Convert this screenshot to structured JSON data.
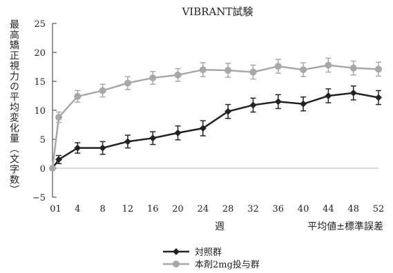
{
  "chart_data": {
    "type": "line",
    "title": "VIBRANT試験",
    "ylabel": "最高矯正視力の平均変化量（文字数）",
    "xlabel": "週",
    "note": "平均値±標準誤差",
    "x": [
      0,
      1,
      4,
      8,
      12,
      16,
      20,
      24,
      28,
      32,
      36,
      40,
      44,
      48,
      52
    ],
    "x_tick_labels": [
      "01",
      "4",
      "8",
      "12",
      "16",
      "20",
      "24",
      "28",
      "32",
      "36",
      "40",
      "44",
      "48",
      "52"
    ],
    "y_ticks": [
      -5,
      0,
      5,
      10,
      15,
      20,
      25
    ],
    "ylim": [
      -5,
      25
    ],
    "xlim": [
      0,
      52
    ],
    "legend_position": "bottom-left",
    "series": [
      {
        "name": "対照群",
        "color": "#222222",
        "marker": "diamond",
        "values": [
          0,
          1.5,
          3.5,
          3.5,
          4.6,
          5.2,
          6.1,
          6.9,
          9.8,
          10.9,
          11.5,
          11.1,
          12.5,
          13.0,
          12.2
        ],
        "error": [
          0,
          0.7,
          0.9,
          1.1,
          1.1,
          1.1,
          1.2,
          1.3,
          1.2,
          1.2,
          1.2,
          1.2,
          1.2,
          1.2,
          1.2
        ]
      },
      {
        "name": "本剤2mg投与群",
        "color": "#a8a8a8",
        "marker": "circle",
        "values": [
          0,
          8.8,
          12.4,
          13.4,
          14.7,
          15.6,
          16.1,
          17.0,
          16.9,
          16.6,
          17.6,
          17.0,
          17.8,
          17.3,
          17.1
        ],
        "error": [
          0,
          0.9,
          1.0,
          1.1,
          1.1,
          1.1,
          1.1,
          1.2,
          1.2,
          1.2,
          1.2,
          1.2,
          1.2,
          1.2,
          1.2
        ]
      }
    ]
  }
}
